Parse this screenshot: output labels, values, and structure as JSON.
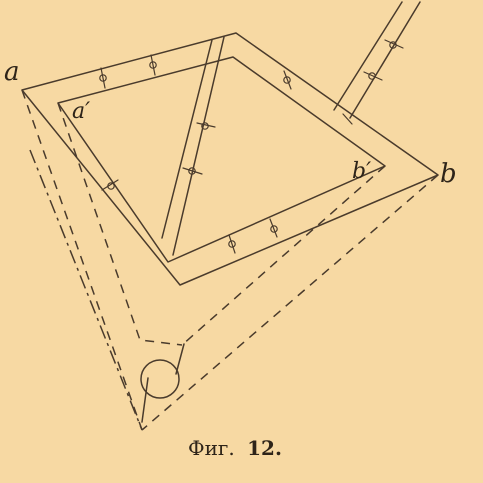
{
  "labels": {
    "a": "a",
    "a_prime": "a′",
    "b": "b",
    "b_prime": "b′"
  },
  "caption": {
    "prefix": "Фиг.",
    "number": "12."
  },
  "colors": {
    "paper": "#f7d9a3",
    "ink": "#4a3b2c"
  }
}
